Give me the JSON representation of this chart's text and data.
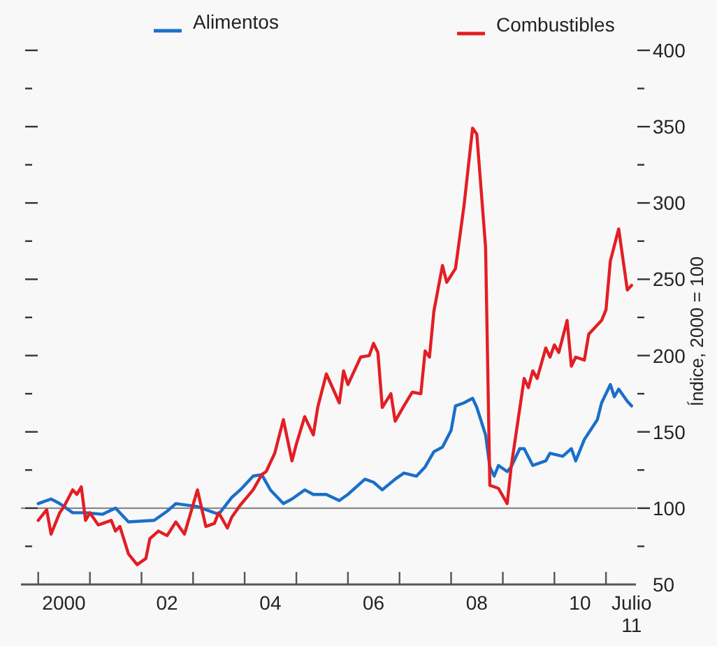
{
  "chart_data": {
    "type": "line",
    "ylabel": "Índice, 2000 = 100",
    "legend": "top",
    "xlim": [
      "1999-09",
      "2011-08"
    ],
    "xticks": [
      {
        "value": "2000-01",
        "label": null
      },
      {
        "value": "2001-01",
        "label": null
      },
      {
        "value": "2002-01",
        "label": null
      },
      {
        "value": "2003-01",
        "label": null
      },
      {
        "value": "2004-01",
        "label": null
      },
      {
        "value": "2005-01",
        "label": null
      },
      {
        "value": "2006-01",
        "label": null
      },
      {
        "value": "2007-01",
        "label": null
      },
      {
        "value": "2008-01",
        "label": null
      },
      {
        "value": "2009-01",
        "label": null
      },
      {
        "value": "2010-01",
        "label": null
      },
      {
        "value": "2011-01",
        "label": null
      },
      {
        "value": "2000-07",
        "label": "2000"
      },
      {
        "value": "2002-07",
        "label": "02"
      },
      {
        "value": "2004-07",
        "label": "04"
      },
      {
        "value": "2006-07",
        "label": "06"
      },
      {
        "value": "2008-07",
        "label": "08"
      },
      {
        "value": "2010-07",
        "label": "10"
      },
      {
        "value": "2011-07",
        "label": "Julio 11"
      }
    ],
    "ylim": [
      50,
      400
    ],
    "yticks": [
      50,
      {
        "value": 75,
        "label": null
      },
      100,
      {
        "value": 125,
        "label": null
      },
      150,
      {
        "value": 175,
        "label": null
      },
      200,
      {
        "value": 225,
        "label": null
      },
      250,
      {
        "value": 275,
        "label": null
      },
      300,
      {
        "value": 325,
        "label": null
      },
      350,
      {
        "value": 375,
        "label": null
      },
      400
    ],
    "ref_lines": [
      {
        "axis": "y",
        "value": 100,
        "color": "#8a8a8a"
      }
    ],
    "series": [
      {
        "name": "Alimentos",
        "color": "#1a6fc9",
        "x": [
          "2000-01",
          "2000-04",
          "2000-06",
          "2000-09",
          "2000-12",
          "2001-04",
          "2001-07",
          "2001-10",
          "2002-04",
          "2002-07",
          "2002-09",
          "2003-02",
          "2003-04",
          "2003-07",
          "2003-10",
          "2003-12",
          "2004-03",
          "2004-05",
          "2004-07",
          "2004-10",
          "2004-12",
          "2005-03",
          "2005-05",
          "2005-08",
          "2005-11",
          "2005-12",
          "2006-01",
          "2006-05",
          "2006-07",
          "2006-09",
          "2006-12",
          "2007-02",
          "2007-05",
          "2007-07",
          "2007-09",
          "2007-11",
          "2008-01",
          "2008-02",
          "2008-04",
          "2008-06",
          "2008-07",
          "2008-09",
          "2008-10",
          "2008-11",
          "2008-12",
          "2009-02",
          "2009-03",
          "2009-05",
          "2009-06",
          "2009-08",
          "2009-11",
          "2009-12",
          "2010-03",
          "2010-05",
          "2010-06",
          "2010-08",
          "2010-11",
          "2010-12",
          "2011-02",
          "2011-03",
          "2011-04",
          "2011-06",
          "2011-07"
        ],
        "values": [
          103,
          106,
          103,
          97,
          97,
          96,
          100,
          91,
          92,
          98,
          103,
          101,
          99,
          96,
          107,
          112,
          121,
          122,
          112,
          103,
          106,
          112,
          109,
          109,
          105,
          107,
          109,
          119,
          117,
          112,
          119,
          123,
          121,
          127,
          137,
          140,
          151,
          167,
          169,
          172,
          166,
          148,
          127,
          121,
          128,
          124,
          127,
          139,
          139,
          128,
          131,
          136,
          134,
          139,
          131,
          145,
          158,
          169,
          181,
          173,
          178,
          170,
          167
        ]
      },
      {
        "name": "Combustibles",
        "color": "#e31e24",
        "x": [
          "2000-01",
          "2000-03",
          "2000-04",
          "2000-06",
          "2000-07",
          "2000-09",
          "2000-10",
          "2000-11",
          "2000-12",
          "2001-01",
          "2001-03",
          "2001-06",
          "2001-07",
          "2001-08",
          "2001-10",
          "2001-12",
          "2002-02",
          "2002-03",
          "2002-05",
          "2002-07",
          "2002-09",
          "2002-11",
          "2003-02",
          "2003-04",
          "2003-06",
          "2003-07",
          "2003-09",
          "2003-10",
          "2003-12",
          "2004-03",
          "2004-05",
          "2004-06",
          "2004-08",
          "2004-10",
          "2004-12",
          "2005-01",
          "2005-03",
          "2005-05",
          "2005-06",
          "2005-08",
          "2005-11",
          "2005-12",
          "2006-01",
          "2006-04",
          "2006-06",
          "2006-07",
          "2006-08",
          "2006-09",
          "2006-11",
          "2006-12",
          "2007-02",
          "2007-04",
          "2007-06",
          "2007-07",
          "2007-08",
          "2007-09",
          "2007-11",
          "2007-12",
          "2008-02",
          "2008-04",
          "2008-06",
          "2008-07",
          "2008-09",
          "2008-10",
          "2008-12",
          "2009-02",
          "2009-03",
          "2009-06",
          "2009-07",
          "2009-08",
          "2009-09",
          "2009-11",
          "2009-12",
          "2010-01",
          "2010-02",
          "2010-04",
          "2010-05",
          "2010-06",
          "2010-08",
          "2010-09",
          "2010-12",
          "2011-01",
          "2011-02",
          "2011-04",
          "2011-06",
          "2011-07"
        ],
        "values": [
          92,
          99,
          83,
          97,
          101,
          112,
          109,
          114,
          92,
          97,
          89,
          92,
          85,
          88,
          70,
          63,
          67,
          80,
          85,
          82,
          91,
          83,
          112,
          88,
          90,
          97,
          87,
          94,
          102,
          112,
          122,
          124,
          136,
          158,
          131,
          142,
          160,
          148,
          166,
          188,
          169,
          190,
          181,
          199,
          200,
          208,
          202,
          166,
          175,
          157,
          167,
          176,
          175,
          203,
          199,
          229,
          259,
          248,
          257,
          298,
          349,
          345,
          271,
          115,
          113,
          103,
          127,
          185,
          179,
          190,
          185,
          205,
          199,
          207,
          202,
          223,
          193,
          199,
          197,
          214,
          223,
          230,
          262,
          283,
          243,
          246
        ]
      }
    ]
  }
}
